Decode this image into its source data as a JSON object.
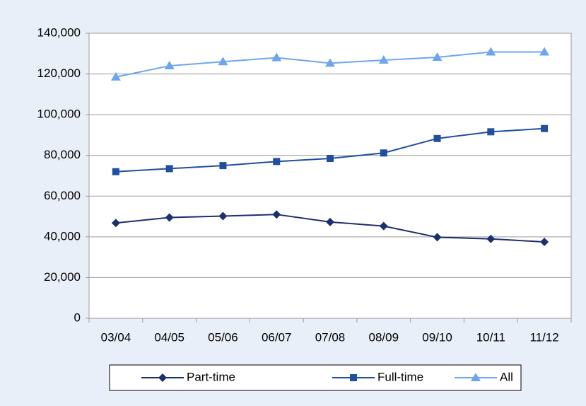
{
  "chart_data": {
    "type": "line",
    "categories": [
      "03/04",
      "04/05",
      "05/06",
      "06/07",
      "07/08",
      "08/09",
      "09/10",
      "10/11",
      "11/12"
    ],
    "series": [
      {
        "name": "Part-time",
        "color": "#1c2f6e",
        "marker": "diamond",
        "values": [
          46800,
          49500,
          50200,
          51000,
          47300,
          45300,
          39800,
          39000,
          37500
        ]
      },
      {
        "name": "Full-time",
        "color": "#1f4f9e",
        "marker": "square",
        "values": [
          72000,
          73500,
          75000,
          77000,
          78500,
          81200,
          88300,
          91600,
          93200
        ]
      },
      {
        "name": "All",
        "color": "#6ea6ee",
        "marker": "triangle",
        "values": [
          118500,
          124000,
          126000,
          128000,
          125300,
          126800,
          128200,
          130800,
          130800
        ]
      }
    ],
    "ylim": [
      0,
      140000
    ],
    "yticks": [
      0,
      {
        "value": 20000,
        "label": "20,000"
      },
      {
        "value": 40000,
        "label": "40,000"
      },
      {
        "value": 60000,
        "label": "60,000"
      },
      {
        "value": 80000,
        "label": "80,000"
      },
      {
        "value": 100000,
        "label": "100,000"
      },
      {
        "value": 120000,
        "label": "120,000"
      },
      {
        "value": 140000,
        "label": "140,000"
      }
    ],
    "grid": true,
    "legend": "bottom"
  }
}
